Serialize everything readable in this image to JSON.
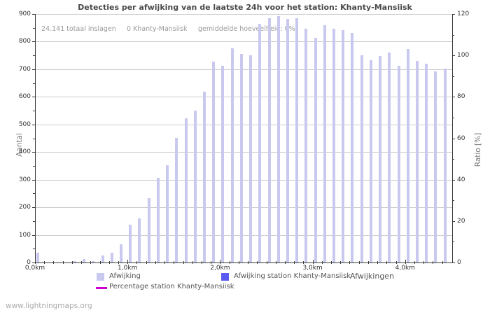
{
  "title": "Detecties per afwijking van de laatste 24h voor het station: Khanty-Mansiisk",
  "annotations": {
    "total": "24.141 totaal inslagen",
    "station_count": "0 Khanty-Mansiisk",
    "average": "gemiddelde hoeveelheid: 0%"
  },
  "axes": {
    "left_title": "Aantal",
    "right_title": "Ratio [%]",
    "x_title": "Afwijkingen"
  },
  "legend": {
    "afwijking": "Afwijking",
    "station": "Afwijking station Khanty-Mansiisk",
    "percentage": "Percentage station Khanty-Mansiisk"
  },
  "watermark": "www.lightningmaps.org",
  "colors": {
    "bar": "#c9c9f0",
    "station_bar": "#5a5af0",
    "percentage_line": "#cc00cc",
    "gridline": "#cccccc"
  },
  "chart_data": {
    "type": "bar",
    "title": "Detecties per afwijking van de laatste 24h voor het station: Khanty-Mansiisk",
    "xlabel": "Afwijkingen",
    "ylabel_left": "Aantal",
    "ylabel_right": "Ratio [%]",
    "ylim_left": [
      0,
      900
    ],
    "ylim_right": [
      0,
      120
    ],
    "grid": true,
    "legend_position": "bottom",
    "x_tick_labels": [
      "0,0km",
      "1,0km",
      "2,0km",
      "3,0km",
      "4,0km"
    ],
    "y_ticks_left": [
      0,
      100,
      200,
      300,
      400,
      500,
      600,
      700,
      800,
      900
    ],
    "y_ticks_right": [
      0,
      20,
      40,
      60,
      80,
      100,
      120
    ],
    "bin_width_km": 0.1,
    "distances_km": [
      0.0,
      0.1,
      0.2,
      0.3,
      0.4,
      0.5,
      0.6,
      0.7,
      0.8,
      0.9,
      1.0,
      1.1,
      1.2,
      1.3,
      1.4,
      1.5,
      1.6,
      1.7,
      1.8,
      1.9,
      2.0,
      2.1,
      2.2,
      2.3,
      2.4,
      2.5,
      2.6,
      2.7,
      2.8,
      2.9,
      3.0,
      3.1,
      3.2,
      3.3,
      3.4,
      3.5,
      3.6,
      3.7,
      3.8,
      3.9,
      4.0,
      4.1,
      4.2,
      4.3,
      4.4
    ],
    "series": [
      {
        "name": "Afwijking",
        "type": "bar",
        "color": "#c9c9f0",
        "values": [
          35,
          0,
          0,
          0,
          5,
          12,
          6,
          25,
          36,
          65,
          136,
          160,
          232,
          306,
          352,
          452,
          522,
          549,
          619,
          727,
          712,
          776,
          756,
          750,
          865,
          886,
          893,
          882,
          884,
          848,
          815,
          860,
          848,
          841,
          832,
          750,
          733,
          747,
          760,
          712,
          773,
          731,
          720,
          691,
          701
        ]
      },
      {
        "name": "Afwijking station Khanty-Mansiisk",
        "type": "bar",
        "color": "#5a5af0",
        "values_note": "no visible bars (0 detections at this station)"
      },
      {
        "name": "Percentage station Khanty-Mansiisk",
        "type": "line",
        "color": "#cc00cc",
        "values_note": "no visible line (average 0%)"
      }
    ]
  }
}
